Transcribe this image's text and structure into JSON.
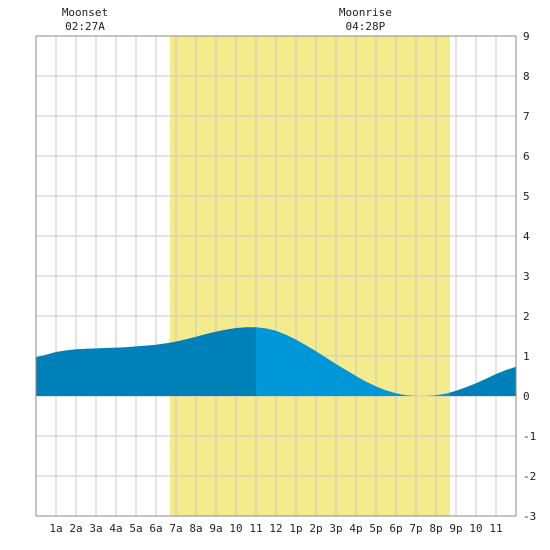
{
  "chart_data": {
    "type": "area",
    "title": "",
    "xlabel": "",
    "ylabel": "",
    "xlim": [
      0,
      24
    ],
    "ylim": [
      -3,
      9
    ],
    "grid": true,
    "x_tick_labels": [
      "1a",
      "2a",
      "3a",
      "4a",
      "5a",
      "6a",
      "7a",
      "8a",
      "9a",
      "10",
      "11",
      "12",
      "1p",
      "2p",
      "3p",
      "4p",
      "5p",
      "6p",
      "7p",
      "8p",
      "9p",
      "10",
      "11"
    ],
    "y_tick_labels": [
      "-3",
      "-2",
      "-1",
      "0",
      "1",
      "2",
      "3",
      "4",
      "5",
      "6",
      "7",
      "8",
      "9"
    ],
    "daylight": {
      "start": 6.7,
      "end": 20.7,
      "color": "#f3eb8c"
    },
    "moon_events": [
      {
        "label": "Moonset",
        "time": "02:27A",
        "x": 2.45
      },
      {
        "label": "Moonrise",
        "time": "04:28P",
        "x": 16.47
      }
    ],
    "series": [
      {
        "points": [
          [
            0,
            0.97
          ],
          [
            0.5,
            1.03
          ],
          [
            1,
            1.1
          ],
          [
            1.5,
            1.14
          ],
          [
            2,
            1.17
          ],
          [
            2.5,
            1.18
          ],
          [
            3,
            1.19
          ],
          [
            3.5,
            1.2
          ],
          [
            4,
            1.21
          ],
          [
            4.5,
            1.22
          ],
          [
            5,
            1.24
          ],
          [
            5.5,
            1.26
          ],
          [
            6,
            1.28
          ],
          [
            6.5,
            1.32
          ],
          [
            7,
            1.36
          ],
          [
            7.5,
            1.42
          ],
          [
            8,
            1.48
          ],
          [
            8.5,
            1.55
          ],
          [
            9,
            1.61
          ],
          [
            9.5,
            1.66
          ],
          [
            10,
            1.7
          ],
          [
            10.5,
            1.72
          ],
          [
            11,
            1.72
          ],
          [
            11.5,
            1.69
          ],
          [
            12,
            1.63
          ],
          [
            12.5,
            1.53
          ],
          [
            13,
            1.41
          ],
          [
            13.5,
            1.27
          ],
          [
            14,
            1.12
          ],
          [
            14.5,
            0.96
          ],
          [
            15,
            0.8
          ],
          [
            15.5,
            0.65
          ],
          [
            16,
            0.5
          ],
          [
            16.5,
            0.36
          ],
          [
            17,
            0.24
          ],
          [
            17.5,
            0.14
          ],
          [
            18,
            0.07
          ],
          [
            18.5,
            0.02
          ],
          [
            19,
            0.0
          ],
          [
            19.5,
            0.0
          ],
          [
            20,
            0.02
          ],
          [
            20.5,
            0.06
          ],
          [
            21,
            0.13
          ],
          [
            21.5,
            0.22
          ],
          [
            22,
            0.32
          ],
          [
            22.5,
            0.43
          ],
          [
            23,
            0.55
          ],
          [
            23.5,
            0.65
          ],
          [
            24,
            0.73
          ]
        ],
        "color_outside": "#0080b8",
        "color_highlight": "#0097d8",
        "highlight_range": [
          11,
          20.7
        ]
      }
    ]
  }
}
